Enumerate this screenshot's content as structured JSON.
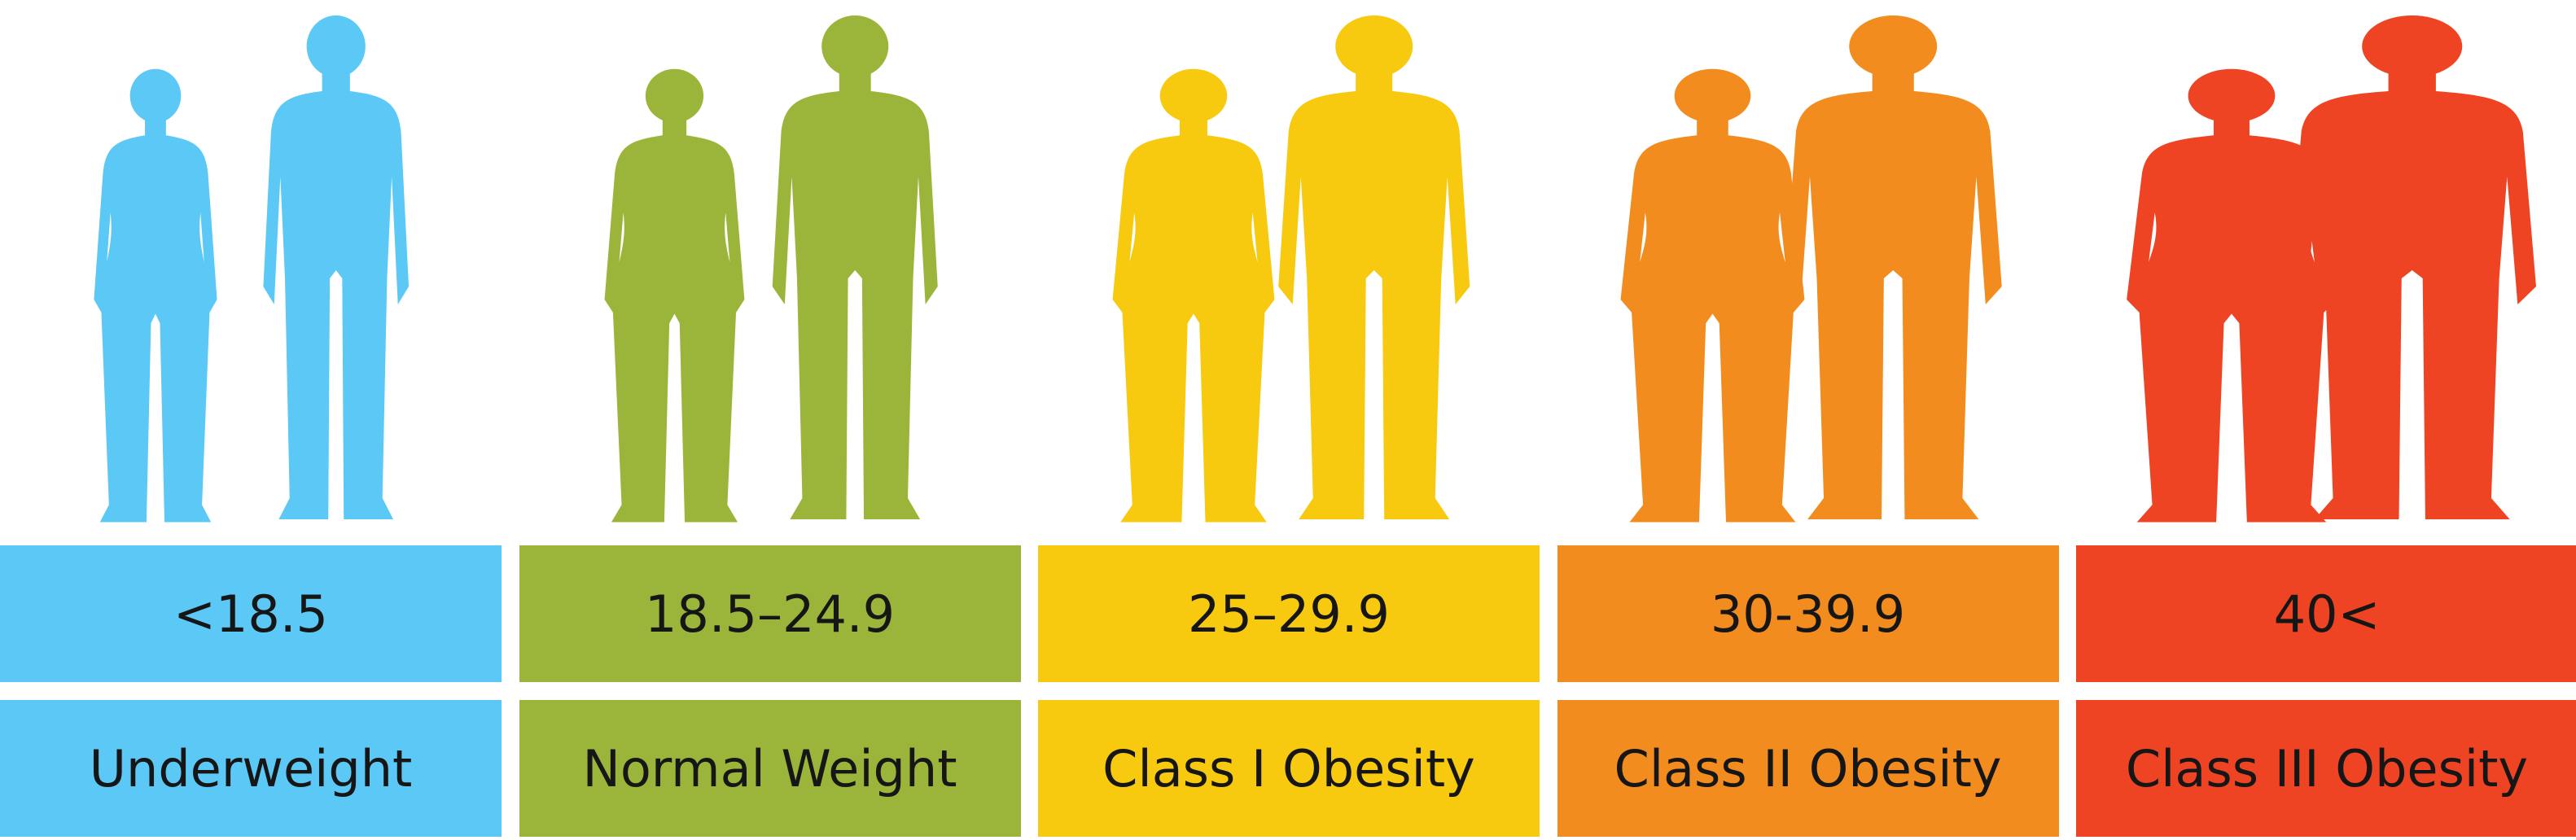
{
  "categories": [
    {
      "range": "<18.5",
      "label": "Underweight"
    },
    {
      "range": "18.5–24.9",
      "label": "Normal Weight"
    },
    {
      "range": "25–29.9",
      "label": "Class I Obesity"
    },
    {
      "range": "30-39.9",
      "label": "Class II Obesity"
    },
    {
      "range": "40<",
      "label": "Class III Obesity"
    }
  ]
}
